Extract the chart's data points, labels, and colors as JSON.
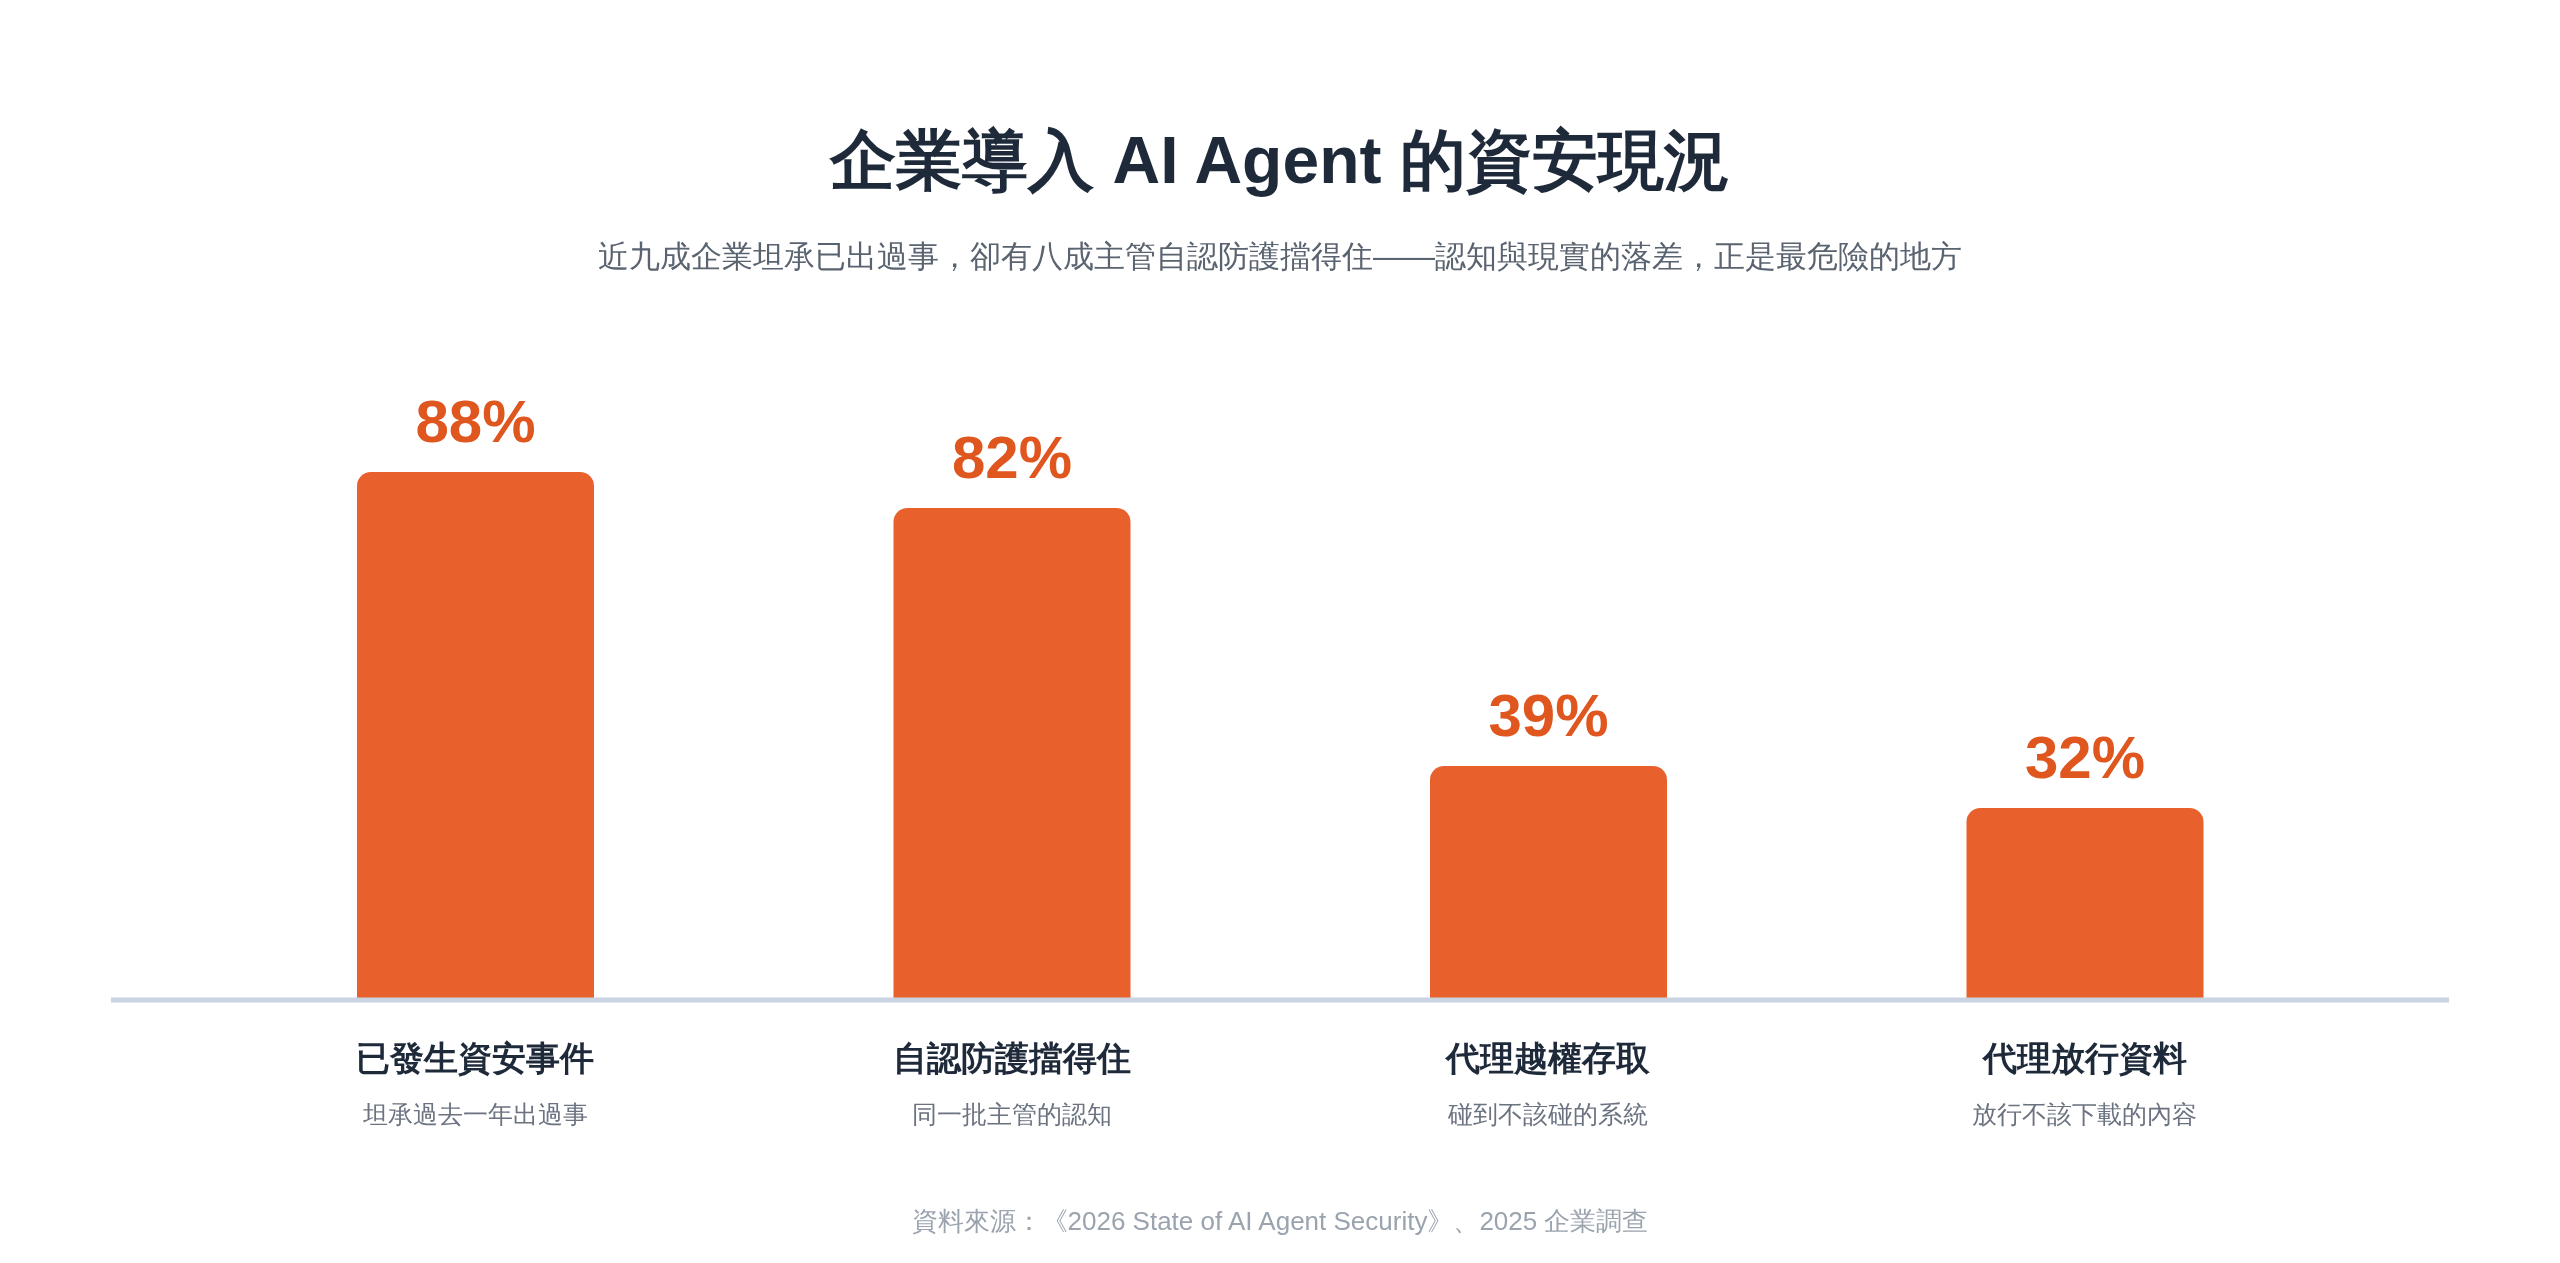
{
  "chart_data": {
    "type": "bar",
    "title": "企業導入 AI Agent 的資安現況",
    "subtitle": "近九成企業坦承已出過事，卻有八成主管自認防護擋得住——認知與現實的落差，正是最危險的地方",
    "categories": [
      "已發生資安事件",
      "自認防護擋得住",
      "代理越權存取",
      "代理放行資料"
    ],
    "values": [
      88,
      82,
      39,
      32
    ],
    "value_labels": [
      "88%",
      "82%",
      "39%",
      "32%"
    ],
    "color": "#e8602c",
    "annotations": [
      "坦承過去一年出過事",
      "同一批主管的認知",
      "碰到不該碰的系統",
      "放行不該下載的內容",
      "資料來源：《2026 State of AI Agent Security》、2025 企業調查"
    ]
  }
}
